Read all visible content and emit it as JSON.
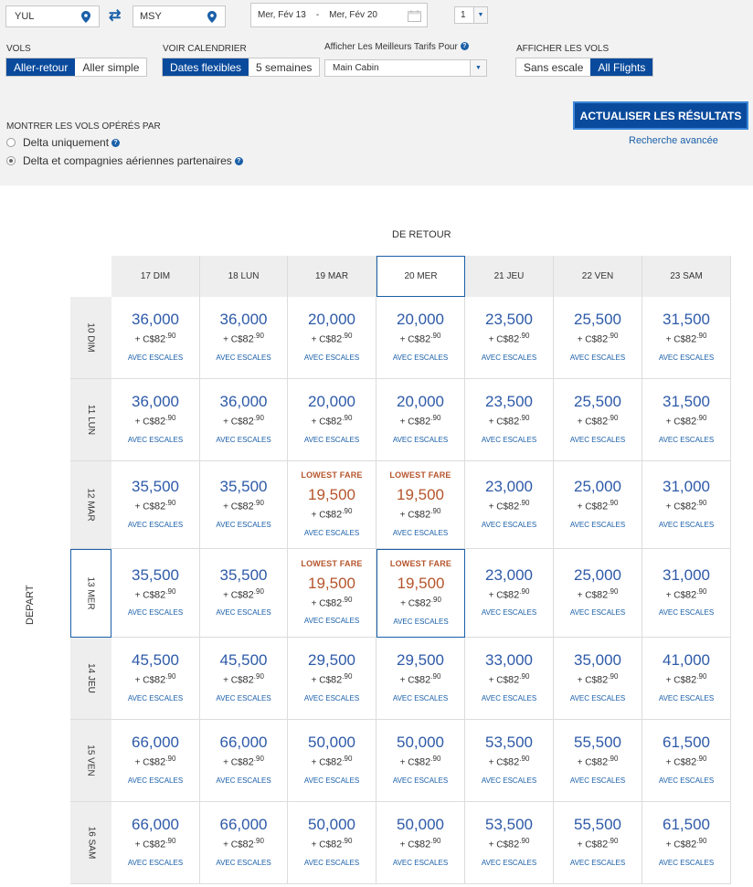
{
  "search": {
    "origin": "YUL",
    "destination": "MSY",
    "date_from": "Mer, Fév 13",
    "date_sep": "-",
    "date_to": "Mer, Fév 20",
    "passengers": "1"
  },
  "filters": {
    "vols_label": "VOLS",
    "vols_options": [
      "Aller-retour",
      "Aller simple"
    ],
    "calendar_label": "VOIR CALENDRIER",
    "calendar_options": [
      "Dates flexibles",
      "5 semaines"
    ],
    "fare_label": "Afficher Les Meilleurs Tarifs Pour",
    "fare_value": "Main Cabin",
    "flights_label": "AFFICHER LES VOLS",
    "flights_options": [
      "Sans escale",
      "All Flights"
    ],
    "operated_label": "MONTRER LES VOLS OPÉRÉS PAR",
    "operated_options": [
      "Delta uniquement",
      "Delta et compagnies aériennes partenaires"
    ]
  },
  "actions": {
    "update": "ACTUALISER LES RÉSULTATS",
    "advanced": "Recherche avancée"
  },
  "grid": {
    "return_title": "DE RETOUR",
    "depart_title": "DEPART",
    "columns": [
      "17 DIM",
      "18 LUN",
      "19 MAR",
      "20 MER",
      "21 JEU",
      "22 VEN",
      "23 SAM"
    ],
    "rows": [
      "10 DIM",
      "11 LUN",
      "12 MAR",
      "13 MER",
      "14 JEU",
      "15 VEN",
      "16 SAM"
    ],
    "tax_prefix": "+ C$",
    "tax_main": "82",
    "tax_cents": ".90",
    "stops_label": "AVEC ESCALES",
    "lowest_label": "LOWEST FARE",
    "prices": [
      [
        "36,000",
        "36,000",
        "20,000",
        "20,000",
        "23,500",
        "25,500",
        "31,500"
      ],
      [
        "36,000",
        "36,000",
        "20,000",
        "20,000",
        "23,500",
        "25,500",
        "31,500"
      ],
      [
        "35,500",
        "35,500",
        "19,500",
        "19,500",
        "23,000",
        "25,000",
        "31,000"
      ],
      [
        "35,500",
        "35,500",
        "19,500",
        "19,500",
        "23,000",
        "25,000",
        "31,000"
      ],
      [
        "45,500",
        "45,500",
        "29,500",
        "29,500",
        "33,000",
        "35,000",
        "41,000"
      ],
      [
        "66,000",
        "66,000",
        "50,000",
        "50,000",
        "53,500",
        "55,500",
        "61,500"
      ],
      [
        "66,000",
        "66,000",
        "50,000",
        "50,000",
        "53,500",
        "55,500",
        "61,500"
      ]
    ],
    "lowest_cells": [
      [
        2,
        2
      ],
      [
        2,
        3
      ],
      [
        3,
        2
      ],
      [
        3,
        3
      ]
    ],
    "selected_row": 3,
    "selected_col": 3
  }
}
